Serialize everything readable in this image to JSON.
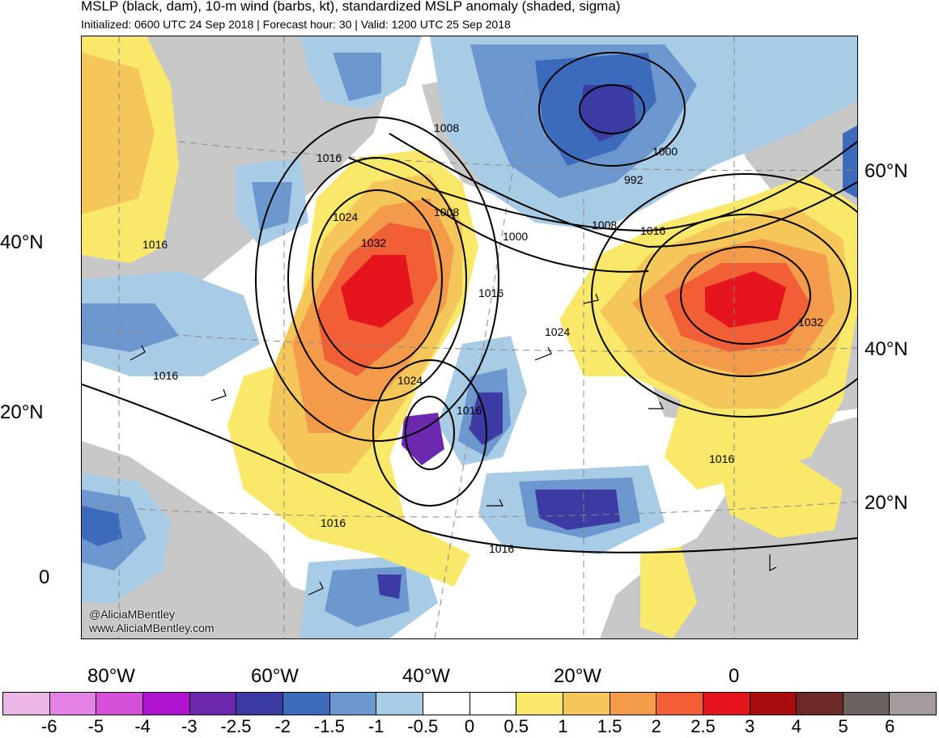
{
  "title": "MSLP (black, dam), 10-m wind (barbs, kt), standardized MSLP anomaly (shaded, sigma)",
  "subtitle": "Initialized: 0600 UTC 24 Sep 2018 | Forecast hour: 30 | Valid: 1200 UTC 25 Sep 2018",
  "credit": [
    "@AliciaMBentley",
    "www.AliciaMBentley.com"
  ],
  "left_lat_labels": [
    "40°N",
    "20°N",
    "0"
  ],
  "right_lat_labels": [
    "60°N",
    "40°N",
    "20°N"
  ],
  "lon_labels": [
    "80°W",
    "60°W",
    "40°W",
    "20°W",
    "0"
  ],
  "contour_labels": [
    "1008",
    "1016",
    "1016",
    "1024",
    "1032",
    "1008",
    "1000",
    "1008",
    "1000",
    "992",
    "1016",
    "1016",
    "1024",
    "1016",
    "1024",
    "1032",
    "1016",
    "1016",
    "1016",
    "1016"
  ],
  "colorbar": {
    "colors": [
      "#ebb8e6",
      "#e484e2",
      "#d54fd8",
      "#b013cf",
      "#6d28b0",
      "#3b3ba3",
      "#3c6bbb",
      "#6d97cf",
      "#a8cbe6",
      "#ffffff",
      "#ffffff",
      "#f9e86a",
      "#f5c75a",
      "#f39b4a",
      "#f05f35",
      "#e4151c",
      "#a90c0c",
      "#6d2a24",
      "#6b6260",
      "#a49c9c"
    ],
    "labels": [
      "-6",
      "-5",
      "-4",
      "-3",
      "-2.5",
      "-2",
      "-1.5",
      "-1",
      "-0.5",
      "0",
      "0.5",
      "1",
      "1.5",
      "2",
      "2.5",
      "3",
      "4",
      "5",
      "6"
    ]
  }
}
